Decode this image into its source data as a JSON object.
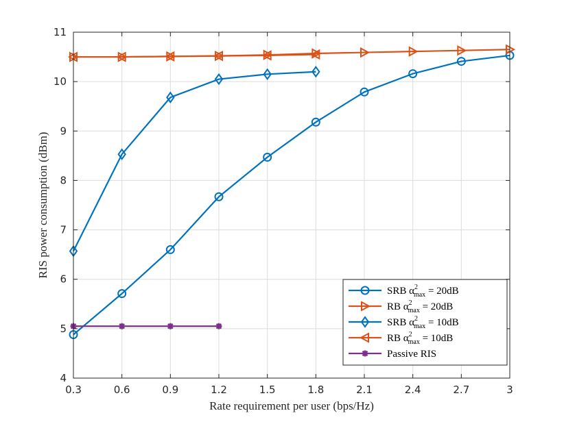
{
  "chart_data": {
    "type": "line",
    "xlabel": "Rate requirement per user (bps/Hz)",
    "ylabel": "RIS power consumption (dBm)",
    "xlim": [
      0.3,
      3
    ],
    "ylim": [
      4,
      11
    ],
    "xticks": [
      "0.3",
      "0.6",
      "0.9",
      "1.2",
      "1.5",
      "1.8",
      "2.1",
      "2.4",
      "2.7",
      "3"
    ],
    "yticks": [
      "4",
      "5",
      "6",
      "7",
      "8",
      "9",
      "10",
      "11"
    ],
    "grid": true,
    "legend_position": "bottom-right",
    "series": [
      {
        "name": "SRB α²max = 20dB",
        "legend_parts": [
          "SRB α",
          "2",
          "max",
          " = 20dB"
        ],
        "color": "#0072BD",
        "marker": "circle",
        "x": [
          0.3,
          0.6,
          0.9,
          1.2,
          1.5,
          1.8,
          2.1,
          2.4,
          2.7,
          3.0
        ],
        "y": [
          4.88,
          5.71,
          6.6,
          7.67,
          8.47,
          9.18,
          9.79,
          10.16,
          10.41,
          10.53
        ]
      },
      {
        "name": "RB α²max = 20dB",
        "legend_parts": [
          "RB α",
          "2",
          "max",
          " = 20dB"
        ],
        "color": "#D95319",
        "marker": "triangle-right",
        "x": [
          0.3,
          0.6,
          0.9,
          1.2,
          1.5,
          1.8,
          2.1,
          2.4,
          2.7,
          3.0
        ],
        "y": [
          10.5,
          10.5,
          10.51,
          10.52,
          10.54,
          10.57,
          10.59,
          10.61,
          10.63,
          10.65
        ]
      },
      {
        "name": "SRB α²max = 10dB",
        "legend_parts": [
          "SRB α",
          "2",
          "max",
          " = 10dB"
        ],
        "color": "#0072BD",
        "marker": "diamond",
        "x": [
          0.3,
          0.6,
          0.9,
          1.2,
          1.5,
          1.8
        ],
        "y": [
          6.57,
          8.53,
          9.68,
          10.05,
          10.15,
          10.2
        ]
      },
      {
        "name": "RB α²max = 10dB",
        "legend_parts": [
          "RB α",
          "2",
          "max",
          " = 10dB"
        ],
        "color": "#D95319",
        "marker": "triangle-left",
        "x": [
          0.3,
          0.6,
          0.9,
          1.2,
          1.5,
          1.8
        ],
        "y": [
          10.5,
          10.5,
          10.51,
          10.52,
          10.53,
          10.55
        ]
      },
      {
        "name": "Passive RIS",
        "legend_parts": [
          "Passive RIS",
          "",
          "",
          ""
        ],
        "color": "#7E2F8E",
        "marker": "star",
        "x": [
          0.3,
          0.6,
          0.9,
          1.2
        ],
        "y": [
          5.05,
          5.05,
          5.05,
          5.05
        ]
      }
    ]
  }
}
